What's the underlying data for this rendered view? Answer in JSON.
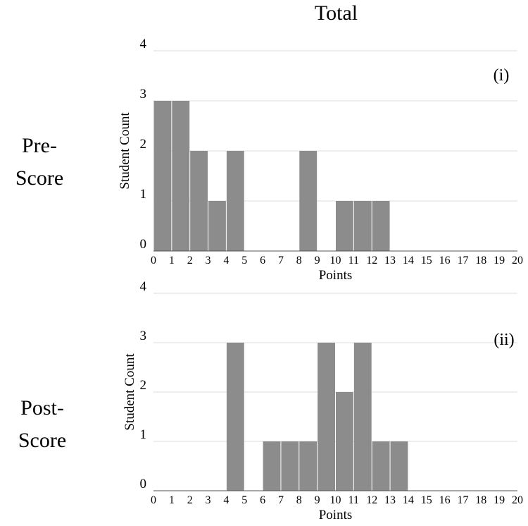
{
  "title": "Total",
  "colors": {
    "bar": "#8c8c8c",
    "grid": "#dddddd",
    "axis": "#555555"
  },
  "rows": [
    {
      "label_line1": "Pre-",
      "label_line2": "Score"
    },
    {
      "label_line1": "Post-",
      "label_line2": "Score"
    }
  ],
  "chart_data": [
    {
      "type": "bar",
      "title": "",
      "panel_label": "(i)",
      "xlabel": "Points",
      "ylabel": "Student Count",
      "xlim": [
        0,
        20
      ],
      "ylim": [
        0,
        4
      ],
      "xticks": [
        0,
        1,
        2,
        3,
        4,
        5,
        6,
        7,
        8,
        9,
        10,
        11,
        12,
        13,
        14,
        15,
        16,
        17,
        18,
        19,
        20
      ],
      "yticks": [
        0,
        1,
        2,
        3,
        4
      ],
      "grid": true,
      "bins": [
        {
          "x0": 0,
          "x1": 1,
          "count": 3
        },
        {
          "x0": 1,
          "x1": 2,
          "count": 3
        },
        {
          "x0": 2,
          "x1": 3,
          "count": 2
        },
        {
          "x0": 3,
          "x1": 4,
          "count": 1
        },
        {
          "x0": 4,
          "x1": 5,
          "count": 2
        },
        {
          "x0": 8,
          "x1": 9,
          "count": 2
        },
        {
          "x0": 10,
          "x1": 11,
          "count": 1
        },
        {
          "x0": 11,
          "x1": 12,
          "count": 1
        },
        {
          "x0": 12,
          "x1": 13,
          "count": 1
        }
      ]
    },
    {
      "type": "bar",
      "title": "",
      "panel_label": "(ii)",
      "xlabel": "Points",
      "ylabel": "Student Count",
      "xlim": [
        0,
        20
      ],
      "ylim": [
        0,
        4
      ],
      "xticks": [
        0,
        1,
        2,
        3,
        4,
        5,
        6,
        7,
        8,
        9,
        10,
        11,
        12,
        13,
        14,
        15,
        16,
        17,
        18,
        19,
        20
      ],
      "yticks": [
        0,
        1,
        2,
        3,
        4
      ],
      "grid": true,
      "bins": [
        {
          "x0": 4,
          "x1": 5,
          "count": 3
        },
        {
          "x0": 6,
          "x1": 7,
          "count": 1
        },
        {
          "x0": 7,
          "x1": 8,
          "count": 1
        },
        {
          "x0": 8,
          "x1": 9,
          "count": 1
        },
        {
          "x0": 9,
          "x1": 10,
          "count": 3
        },
        {
          "x0": 10,
          "x1": 11,
          "count": 2
        },
        {
          "x0": 11,
          "x1": 12,
          "count": 3
        },
        {
          "x0": 12,
          "x1": 13,
          "count": 1
        },
        {
          "x0": 13,
          "x1": 14,
          "count": 1
        }
      ]
    }
  ]
}
